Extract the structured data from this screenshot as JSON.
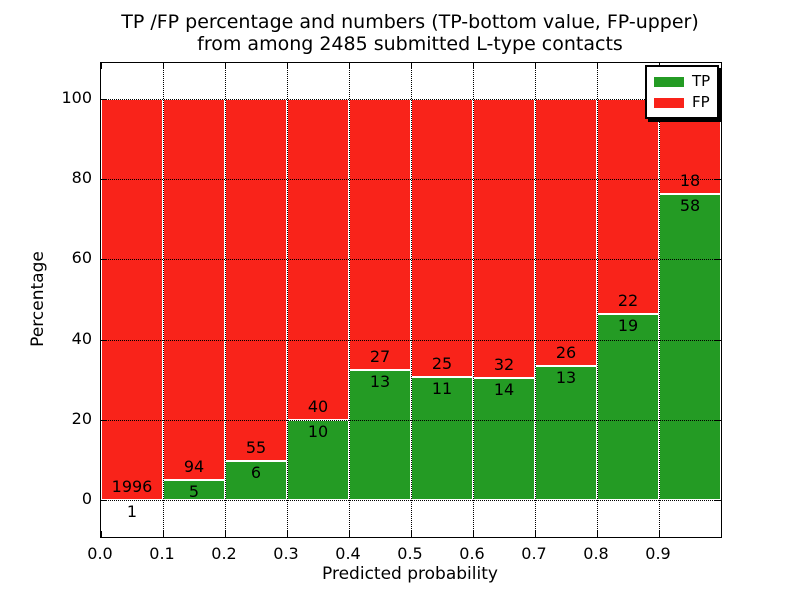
{
  "title": {
    "line1": "TP /FP percentage and numbers (TP-bottom value, FP-upper)",
    "line2": "from among 2485 submitted L-type contacts"
  },
  "axes": {
    "xlabel": "Predicted probability",
    "ylabel": "Percentage",
    "xtick_labels": [
      "0.0",
      "0.1",
      "0.2",
      "0.3",
      "0.4",
      "0.5",
      "0.6",
      "0.7",
      "0.8",
      "0.9"
    ],
    "ytick_labels": [
      "0",
      "20",
      "40",
      "60",
      "80",
      "100"
    ],
    "ytick_values": [
      0,
      20,
      40,
      60,
      80,
      100
    ]
  },
  "legend": {
    "items": [
      {
        "label": "TP",
        "color": "#249b24"
      },
      {
        "label": "FP",
        "color": "#f9231a"
      }
    ]
  },
  "colors": {
    "tp_green": "#249b24",
    "fp_red": "#f9231a",
    "bar_edge": "#ffffff",
    "grid": "#000000"
  },
  "chart_data": {
    "type": "bar",
    "stacked": true,
    "title": "TP /FP percentage and numbers (TP-bottom value, FP-upper) from among 2485 submitted L-type contacts",
    "xlabel": "Predicted probability",
    "ylabel": "Percentage",
    "xlim": [
      0.0,
      1.0
    ],
    "ylim": [
      -9.5,
      109.5
    ],
    "bin_width": 0.1,
    "bins": [
      "0.0-0.1",
      "0.1-0.2",
      "0.2-0.3",
      "0.3-0.4",
      "0.4-0.5",
      "0.5-0.6",
      "0.6-0.7",
      "0.7-0.8",
      "0.8-0.9",
      "0.9-1.0"
    ],
    "series": [
      {
        "name": "TP",
        "color": "#249b24",
        "counts": [
          1,
          5,
          6,
          10,
          13,
          11,
          14,
          13,
          19,
          58
        ]
      },
      {
        "name": "FP",
        "color": "#f9231a",
        "counts": [
          1996,
          94,
          55,
          40,
          27,
          25,
          32,
          26,
          22,
          18
        ]
      }
    ],
    "tp_percent": [
      0.05,
      5.05,
      9.84,
      20.0,
      32.5,
      30.56,
      30.43,
      33.33,
      46.34,
      76.32
    ],
    "total_contacts": 2485,
    "grid": "dotted, drawn over bars",
    "legend_position": "upper right"
  }
}
